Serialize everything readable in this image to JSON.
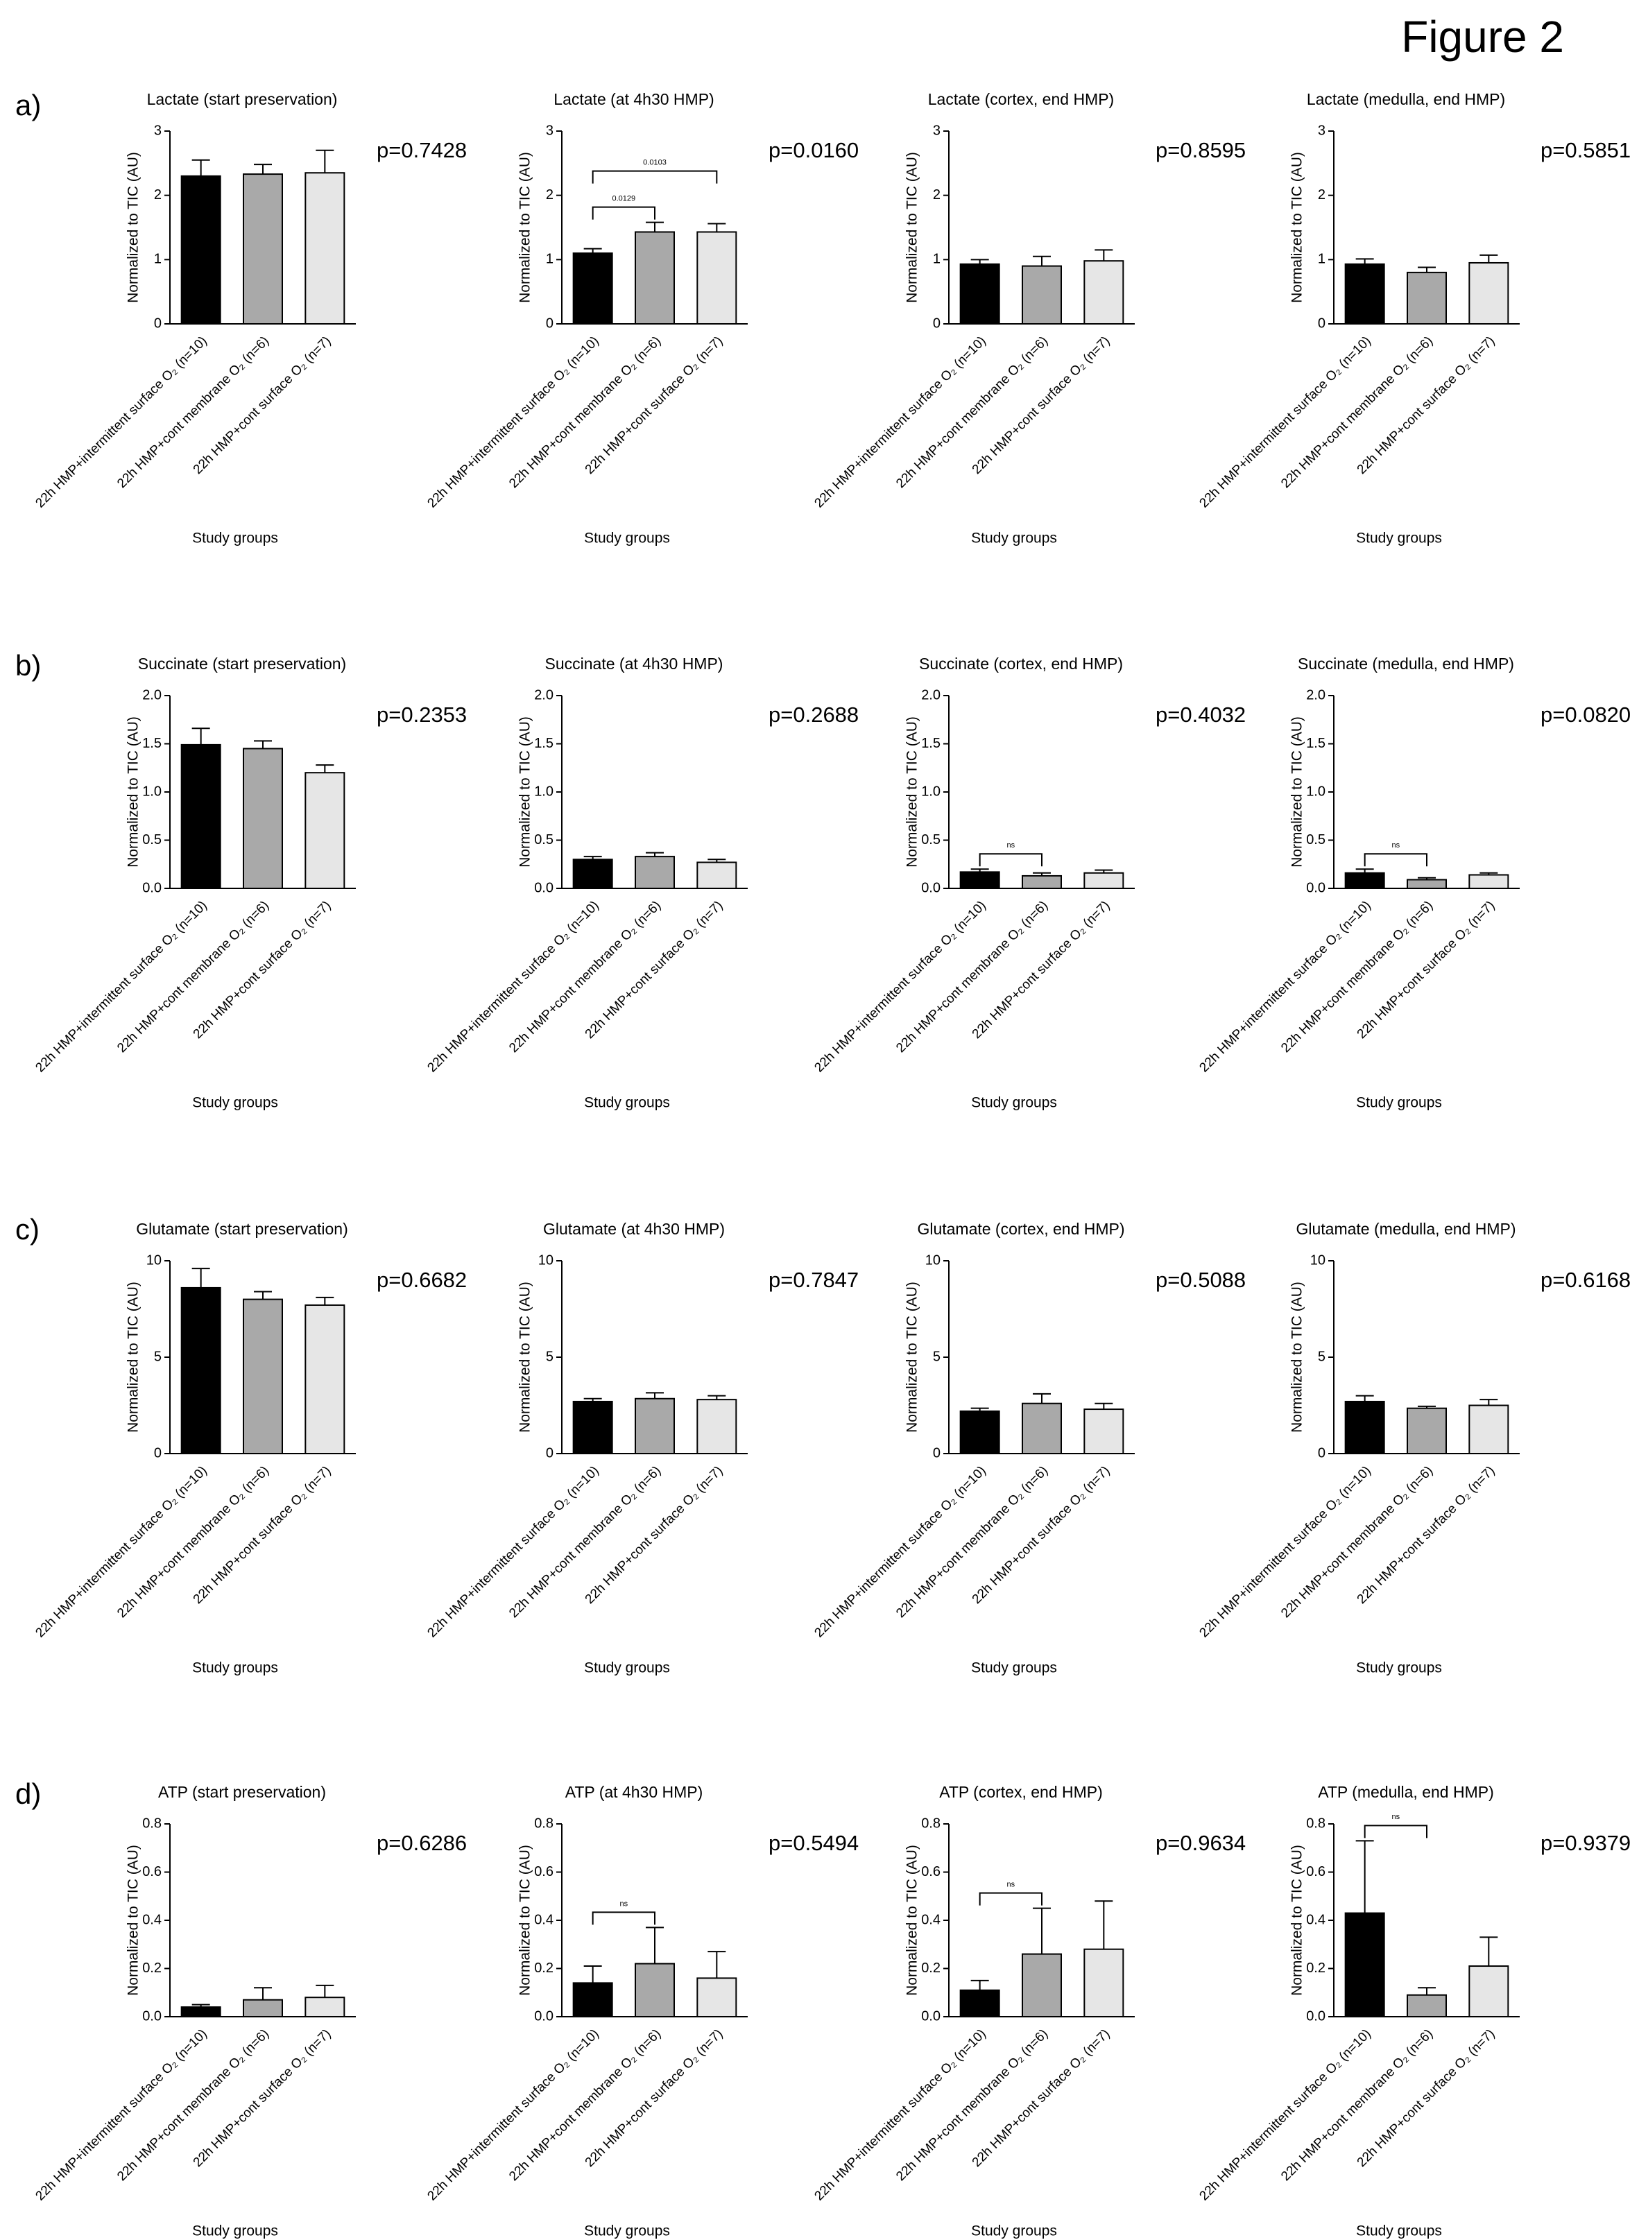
{
  "figure_title": "Figure 2",
  "panel_labels": [
    "a)",
    "b)",
    "c)",
    "d)"
  ],
  "chart_data": [
    {
      "type": "bar",
      "title": "Lactate (start preservation)",
      "ylabel": "Normalized to TIC (AU)",
      "xlabel": "Study groups",
      "categories": [
        "22h HMP+intermittent surface O₂ (n=10)",
        "22h HMP+cont membrane O₂ (n=6)",
        "22h HMP+cont surface O₂ (n=7)"
      ],
      "colors": [
        "#000000",
        "#a9a9a9",
        "#e6e6e6"
      ],
      "values": [
        2.3,
        2.33,
        2.35
      ],
      "errors": [
        0.25,
        0.15,
        0.35
      ],
      "ylim": [
        0,
        3
      ],
      "yticks": [
        0,
        1,
        2,
        3
      ],
      "annotation": "p=0.7428",
      "brackets": []
    },
    {
      "type": "bar",
      "title": "Lactate (at 4h30 HMP)",
      "ylabel": "Normalized to TIC (AU)",
      "xlabel": "Study groups",
      "categories": [
        "22h HMP+intermittent surface O₂ (n=10)",
        "22h HMP+cont membrane O₂ (n=6)",
        "22h HMP+cont surface O₂ (n=7)"
      ],
      "colors": [
        "#000000",
        "#a9a9a9",
        "#e6e6e6"
      ],
      "values": [
        1.1,
        1.43,
        1.43
      ],
      "errors": [
        0.07,
        0.15,
        0.13
      ],
      "ylim": [
        0,
        3
      ],
      "yticks": [
        0,
        1,
        2,
        3
      ],
      "annotation": "p=0.0160",
      "brackets": [
        {
          "pair": [
            0,
            1
          ],
          "label": "0.0129"
        },
        {
          "pair": [
            0,
            2
          ],
          "label": "0.0103"
        }
      ]
    },
    {
      "type": "bar",
      "title": "Lactate (cortex, end HMP)",
      "ylabel": "Normalized to TIC (AU)",
      "xlabel": "Study groups",
      "categories": [
        "22h HMP+intermittent surface O₂ (n=10)",
        "22h HMP+cont membrane O₂ (n=6)",
        "22h HMP+cont surface O₂ (n=7)"
      ],
      "colors": [
        "#000000",
        "#a9a9a9",
        "#e6e6e6"
      ],
      "values": [
        0.93,
        0.9,
        0.98
      ],
      "errors": [
        0.07,
        0.15,
        0.17
      ],
      "ylim": [
        0,
        3
      ],
      "yticks": [
        0,
        1,
        2,
        3
      ],
      "annotation": "p=0.8595",
      "brackets": []
    },
    {
      "type": "bar",
      "title": "Lactate (medulla, end HMP)",
      "ylabel": "Normalized to TIC (AU)",
      "xlabel": "Study groups",
      "categories": [
        "22h HMP+intermittent surface O₂ (n=10)",
        "22h HMP+cont membrane O₂ (n=6)",
        "22h HMP+cont surface O₂ (n=7)"
      ],
      "colors": [
        "#000000",
        "#a9a9a9",
        "#e6e6e6"
      ],
      "values": [
        0.93,
        0.8,
        0.95
      ],
      "errors": [
        0.08,
        0.08,
        0.12
      ],
      "ylim": [
        0,
        3
      ],
      "yticks": [
        0,
        1,
        2,
        3
      ],
      "annotation": "p=0.5851",
      "brackets": []
    },
    {
      "type": "bar",
      "title": "Succinate (start preservation)",
      "ylabel": "Normalized to TIC (AU)",
      "xlabel": "Study groups",
      "categories": [
        "22h HMP+intermittent surface O₂ (n=10)",
        "22h HMP+cont membrane O₂ (n=6)",
        "22h HMP+cont surface O₂ (n=7)"
      ],
      "colors": [
        "#000000",
        "#a9a9a9",
        "#e6e6e6"
      ],
      "values": [
        1.49,
        1.45,
        1.2
      ],
      "errors": [
        0.17,
        0.08,
        0.08
      ],
      "ylim": [
        0,
        2
      ],
      "yticks": [
        {
          "value": 0,
          "label": "0.0"
        },
        0.5,
        {
          "value": 1,
          "label": "1.0"
        },
        1.5,
        {
          "value": 2,
          "label": "2.0"
        }
      ],
      "annotation": "p=0.2353",
      "brackets": []
    },
    {
      "type": "bar",
      "title": "Succinate (at 4h30 HMP)",
      "ylabel": "Normalized to TIC (AU)",
      "xlabel": "Study groups",
      "categories": [
        "22h HMP+intermittent surface O₂ (n=10)",
        "22h HMP+cont membrane O₂ (n=6)",
        "22h HMP+cont surface O₂ (n=7)"
      ],
      "colors": [
        "#000000",
        "#a9a9a9",
        "#e6e6e6"
      ],
      "values": [
        0.3,
        0.33,
        0.27
      ],
      "errors": [
        0.03,
        0.04,
        0.03
      ],
      "ylim": [
        0,
        2
      ],
      "yticks": [
        {
          "value": 0,
          "label": "0.0"
        },
        0.5,
        {
          "value": 1,
          "label": "1.0"
        },
        1.5,
        {
          "value": 2,
          "label": "2.0"
        }
      ],
      "annotation": "p=0.2688",
      "brackets": []
    },
    {
      "type": "bar",
      "title": "Succinate (cortex, end HMP)",
      "ylabel": "Normalized to TIC (AU)",
      "xlabel": "Study groups",
      "categories": [
        "22h HMP+intermittent surface O₂ (n=10)",
        "22h HMP+cont membrane O₂ (n=6)",
        "22h HMP+cont surface O₂ (n=7)"
      ],
      "colors": [
        "#000000",
        "#a9a9a9",
        "#e6e6e6"
      ],
      "values": [
        0.17,
        0.13,
        0.16
      ],
      "errors": [
        0.03,
        0.03,
        0.03
      ],
      "ylim": [
        0,
        2
      ],
      "yticks": [
        {
          "value": 0,
          "label": "0.0"
        },
        0.5,
        {
          "value": 1,
          "label": "1.0"
        },
        1.5,
        {
          "value": 2,
          "label": "2.0"
        }
      ],
      "annotation": "p=0.4032",
      "brackets": [
        {
          "pair": [
            0,
            1
          ],
          "label": "ns"
        }
      ]
    },
    {
      "type": "bar",
      "title": "Succinate (medulla, end HMP)",
      "ylabel": "Normalized to TIC (AU)",
      "xlabel": "Study groups",
      "categories": [
        "22h HMP+intermittent surface O₂ (n=10)",
        "22h HMP+cont membrane O₂ (n=6)",
        "22h HMP+cont surface O₂ (n=7)"
      ],
      "colors": [
        "#000000",
        "#a9a9a9",
        "#e6e6e6"
      ],
      "values": [
        0.16,
        0.09,
        0.14
      ],
      "errors": [
        0.04,
        0.02,
        0.02
      ],
      "ylim": [
        0,
        2
      ],
      "yticks": [
        {
          "value": 0,
          "label": "0.0"
        },
        0.5,
        {
          "value": 1,
          "label": "1.0"
        },
        1.5,
        {
          "value": 2,
          "label": "2.0"
        }
      ],
      "annotation": "p=0.0820",
      "brackets": [
        {
          "pair": [
            0,
            1
          ],
          "label": "ns"
        }
      ]
    },
    {
      "type": "bar",
      "title": "Glutamate (start preservation)",
      "ylabel": "Normalized to TIC (AU)",
      "xlabel": "Study groups",
      "categories": [
        "22h HMP+intermittent surface O₂ (n=10)",
        "22h HMP+cont membrane O₂ (n=6)",
        "22h HMP+cont surface O₂ (n=7)"
      ],
      "colors": [
        "#000000",
        "#a9a9a9",
        "#e6e6e6"
      ],
      "values": [
        8.6,
        8.0,
        7.7
      ],
      "errors": [
        1.0,
        0.4,
        0.4
      ],
      "ylim": [
        0,
        10
      ],
      "yticks": [
        0,
        5,
        10
      ],
      "annotation": "p=0.6682",
      "brackets": []
    },
    {
      "type": "bar",
      "title": "Glutamate (at 4h30 HMP)",
      "ylabel": "Normalized to TIC (AU)",
      "xlabel": "Study groups",
      "categories": [
        "22h HMP+intermittent surface O₂ (n=10)",
        "22h HMP+cont membrane O₂ (n=6)",
        "22h HMP+cont surface O₂ (n=7)"
      ],
      "colors": [
        "#000000",
        "#a9a9a9",
        "#e6e6e6"
      ],
      "values": [
        2.7,
        2.85,
        2.8
      ],
      "errors": [
        0.15,
        0.3,
        0.2
      ],
      "ylim": [
        0,
        10
      ],
      "yticks": [
        0,
        5,
        10
      ],
      "annotation": "p=0.7847",
      "brackets": []
    },
    {
      "type": "bar",
      "title": "Glutamate (cortex, end HMP)",
      "ylabel": "Normalized to TIC (AU)",
      "xlabel": "Study groups",
      "categories": [
        "22h HMP+intermittent surface O₂ (n=10)",
        "22h HMP+cont membrane O₂ (n=6)",
        "22h HMP+cont surface O₂ (n=7)"
      ],
      "colors": [
        "#000000",
        "#a9a9a9",
        "#e6e6e6"
      ],
      "values": [
        2.2,
        2.6,
        2.3
      ],
      "errors": [
        0.15,
        0.5,
        0.3
      ],
      "ylim": [
        0,
        10
      ],
      "yticks": [
        0,
        5,
        10
      ],
      "annotation": "p=0.5088",
      "brackets": []
    },
    {
      "type": "bar",
      "title": "Glutamate (medulla, end HMP)",
      "ylabel": "Normalized to TIC (AU)",
      "xlabel": "Study groups",
      "categories": [
        "22h HMP+intermittent surface O₂ (n=10)",
        "22h HMP+cont membrane O₂ (n=6)",
        "22h HMP+cont surface O₂ (n=7)"
      ],
      "colors": [
        "#000000",
        "#a9a9a9",
        "#e6e6e6"
      ],
      "values": [
        2.7,
        2.35,
        2.5
      ],
      "errors": [
        0.3,
        0.1,
        0.3
      ],
      "ylim": [
        0,
        10
      ],
      "yticks": [
        0,
        5,
        10
      ],
      "annotation": "p=0.6168",
      "brackets": []
    },
    {
      "type": "bar",
      "title": "ATP (start preservation)",
      "ylabel": "Normalized to TIC (AU)",
      "xlabel": "Study groups",
      "categories": [
        "22h HMP+intermittent surface O₂ (n=10)",
        "22h HMP+cont membrane O₂ (n=6)",
        "22h HMP+cont surface O₂ (n=7)"
      ],
      "colors": [
        "#000000",
        "#a9a9a9",
        "#e6e6e6"
      ],
      "values": [
        0.04,
        0.07,
        0.08
      ],
      "errors": [
        0.01,
        0.05,
        0.05
      ],
      "ylim": [
        0,
        0.8
      ],
      "yticks": [
        {
          "value": 0,
          "label": "0.0"
        },
        0.2,
        0.4,
        0.6,
        0.8
      ],
      "annotation": "p=0.6286",
      "brackets": []
    },
    {
      "type": "bar",
      "title": "ATP (at 4h30 HMP)",
      "ylabel": "Normalized to TIC (AU)",
      "xlabel": "Study groups",
      "categories": [
        "22h HMP+intermittent surface O₂ (n=10)",
        "22h HMP+cont membrane O₂ (n=6)",
        "22h HMP+cont surface O₂ (n=7)"
      ],
      "colors": [
        "#000000",
        "#a9a9a9",
        "#e6e6e6"
      ],
      "values": [
        0.14,
        0.22,
        0.16
      ],
      "errors": [
        0.07,
        0.15,
        0.11
      ],
      "ylim": [
        0,
        0.8
      ],
      "yticks": [
        {
          "value": 0,
          "label": "0.0"
        },
        0.2,
        0.4,
        0.6,
        0.8
      ],
      "annotation": "p=0.5494",
      "brackets": [
        {
          "pair": [
            0,
            1
          ],
          "label": "ns"
        }
      ]
    },
    {
      "type": "bar",
      "title": "ATP (cortex, end HMP)",
      "ylabel": "Normalized to TIC (AU)",
      "xlabel": "Study groups",
      "categories": [
        "22h HMP+intermittent surface O₂ (n=10)",
        "22h HMP+cont membrane O₂ (n=6)",
        "22h HMP+cont surface O₂ (n=7)"
      ],
      "colors": [
        "#000000",
        "#a9a9a9",
        "#e6e6e6"
      ],
      "values": [
        0.11,
        0.26,
        0.28
      ],
      "errors": [
        0.04,
        0.19,
        0.2
      ],
      "ylim": [
        0,
        0.8
      ],
      "yticks": [
        {
          "value": 0,
          "label": "0.0"
        },
        0.2,
        0.4,
        0.6,
        0.8
      ],
      "annotation": "p=0.9634",
      "brackets": [
        {
          "pair": [
            0,
            1
          ],
          "label": "ns"
        }
      ]
    },
    {
      "type": "bar",
      "title": "ATP (medulla, end HMP)",
      "ylabel": "Normalized to TIC (AU)",
      "xlabel": "Study groups",
      "categories": [
        "22h HMP+intermittent surface O₂ (n=10)",
        "22h HMP+cont membrane O₂ (n=6)",
        "22h HMP+cont surface O₂ (n=7)"
      ],
      "colors": [
        "#000000",
        "#a9a9a9",
        "#e6e6e6"
      ],
      "values": [
        0.43,
        0.09,
        0.21
      ],
      "errors": [
        0.3,
        0.03,
        0.12
      ],
      "ylim": [
        0,
        0.8
      ],
      "yticks": [
        {
          "value": 0,
          "label": "0.0"
        },
        0.2,
        0.4,
        0.6,
        0.8
      ],
      "annotation": "p=0.9379",
      "brackets": [
        {
          "pair": [
            0,
            1
          ],
          "label": "ns"
        }
      ]
    }
  ]
}
